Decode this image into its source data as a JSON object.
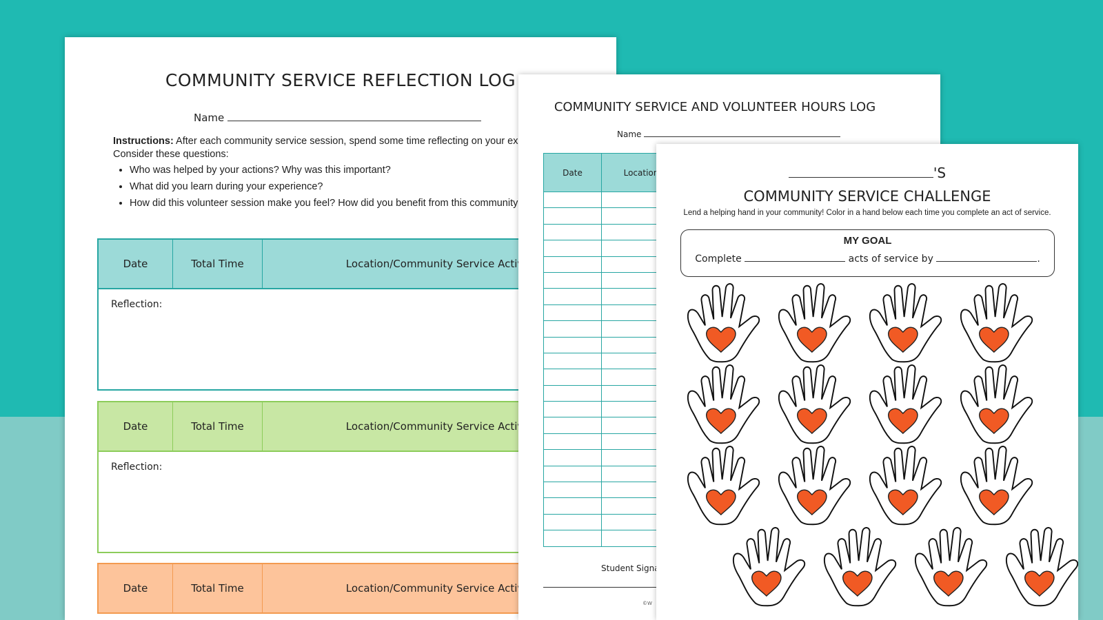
{
  "colors": {
    "background_top": "#1fbab2",
    "background_bottom": "#80cbc6",
    "teal": "#9cdad8",
    "green": "#c8e7a4",
    "orange": "#fdc49b",
    "heart": "#f15a24"
  },
  "reflection_log": {
    "title": "COMMUNITY SERVICE REFLECTION LOG",
    "name_label": "Name",
    "instructions_bold": "Instructions:",
    "instructions_text": " After each community service session, spend some time reflecting on your experience. Consider these questions:",
    "questions": [
      "Who was helped by your actions? Why was this important?",
      "What did you learn during your experience?",
      "How did this volunteer session make you feel? How did you benefit from this community service time?"
    ],
    "columns": [
      "Date",
      "Total Time",
      "Location/Community Service Activity"
    ],
    "reflection_label": "Reflection:"
  },
  "hours_log": {
    "title": "COMMUNITY SERVICE AND VOLUNTEER HOURS LOG",
    "name_label": "Name",
    "columns": [
      "Date",
      "Location"
    ],
    "signature_label": "Student Signature",
    "copyright": "©W"
  },
  "challenge": {
    "possessive": "'S",
    "title": "COMMUNITY SERVICE CHALLENGE",
    "subtitle": "Lend a helping hand in your community! Color in a hand below each time you complete an act of service.",
    "goal_title": "MY GOAL",
    "goal_complete": "Complete",
    "goal_acts": "acts of service by",
    "goal_end": "."
  }
}
